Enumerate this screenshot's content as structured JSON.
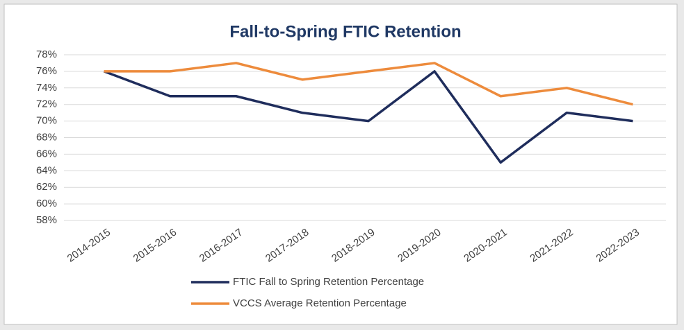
{
  "chart_data": {
    "type": "line",
    "title": "Fall-to-Spring FTIC Retention",
    "categories": [
      "2014-2015",
      "2015-2016",
      "2016-2017",
      "2017-2018",
      "2018-2019",
      "2019-2020",
      "2020-2021",
      "2021-2022",
      "2022-2023"
    ],
    "series": [
      {
        "name": "FTIC Fall to Spring Retention Percentage",
        "color": "#1f2d5c",
        "values": [
          76,
          73,
          73,
          71,
          70,
          76,
          65,
          71,
          70
        ]
      },
      {
        "name": "VCCS Average Retention Percentage",
        "color": "#ed8b3c",
        "values": [
          76,
          76,
          77,
          75,
          76,
          77,
          73,
          74,
          72
        ]
      }
    ],
    "ylim": [
      58,
      78
    ],
    "yticks": [
      {
        "value": 58,
        "label": "58%"
      },
      {
        "value": 60,
        "label": "60%"
      },
      {
        "value": 62,
        "label": "62%"
      },
      {
        "value": 64,
        "label": "64%"
      },
      {
        "value": 66,
        "label": "66%"
      },
      {
        "value": 68,
        "label": "68%"
      },
      {
        "value": 70,
        "label": "70%"
      },
      {
        "value": 72,
        "label": "72%"
      },
      {
        "value": 74,
        "label": "74%"
      },
      {
        "value": 76,
        "label": "76%"
      },
      {
        "value": 78,
        "label": "78%"
      }
    ],
    "grid": true,
    "legend": "bottom"
  }
}
